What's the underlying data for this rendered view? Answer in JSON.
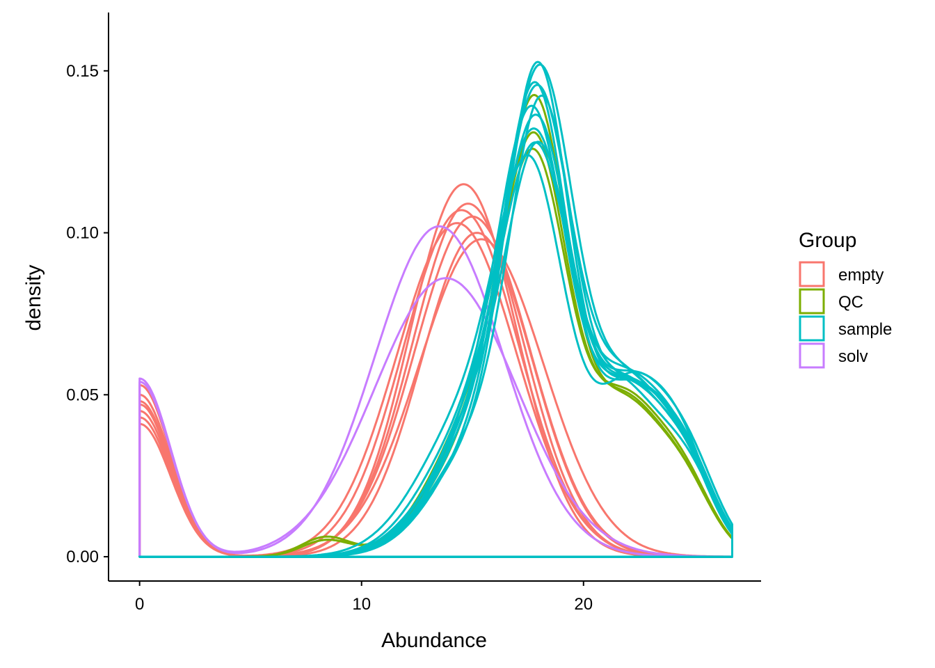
{
  "chart_data": {
    "type": "line",
    "subtype": "density",
    "xlabel": "Abundance",
    "ylabel": "density",
    "xlim": [
      -1.4,
      28.0
    ],
    "ylim": [
      -0.0075,
      0.168
    ],
    "x_ticks": [
      0,
      10,
      20
    ],
    "x_tick_labels": [
      "0",
      "10",
      "20"
    ],
    "y_ticks": [
      0.0,
      0.05,
      0.1,
      0.15
    ],
    "y_tick_labels": [
      "0.00",
      "0.05",
      "0.10",
      "0.15"
    ],
    "x_range": [
      0,
      26.7
    ],
    "grid": false,
    "legend": {
      "title": "Group",
      "placement": "right",
      "entries": [
        {
          "label": "empty",
          "color": "#F8766D"
        },
        {
          "label": "QC",
          "color": "#7CAE00"
        },
        {
          "label": "sample",
          "color": "#00BFC4"
        },
        {
          "label": "solv",
          "color": "#C77CFF"
        }
      ]
    },
    "series": [
      {
        "group": "empty",
        "color": "#F8766D",
        "zero_mass": 0.053,
        "components": [
          [
            14.6,
            2.4,
            0.115
          ]
        ]
      },
      {
        "group": "empty",
        "color": "#F8766D",
        "zero_mass": 0.05,
        "components": [
          [
            14.8,
            2.5,
            0.109
          ]
        ]
      },
      {
        "group": "empty",
        "color": "#F8766D",
        "zero_mass": 0.048,
        "components": [
          [
            14.5,
            2.6,
            0.107
          ]
        ]
      },
      {
        "group": "empty",
        "color": "#F8766D",
        "zero_mass": 0.047,
        "components": [
          [
            15.0,
            2.6,
            0.105
          ]
        ]
      },
      {
        "group": "empty",
        "color": "#F8766D",
        "zero_mass": 0.045,
        "components": [
          [
            14.3,
            2.7,
            0.103
          ]
        ]
      },
      {
        "group": "empty",
        "color": "#F8766D",
        "zero_mass": 0.043,
        "components": [
          [
            15.2,
            2.5,
            0.1
          ]
        ]
      },
      {
        "group": "empty",
        "color": "#F8766D",
        "zero_mass": 0.041,
        "components": [
          [
            15.4,
            2.8,
            0.098
          ]
        ]
      },
      {
        "group": "solv",
        "color": "#C77CFF",
        "zero_mass": 0.055,
        "components": [
          [
            13.5,
            2.9,
            0.102
          ]
        ]
      },
      {
        "group": "solv",
        "color": "#C77CFF",
        "zero_mass": 0.054,
        "components": [
          [
            13.8,
            3.2,
            0.086
          ]
        ]
      },
      {
        "group": "QC",
        "color": "#7CAE00",
        "zero_mass": 0,
        "components": [
          [
            17.9,
            1.45,
            0.118
          ],
          [
            15.5,
            2.2,
            0.038
          ],
          [
            21.8,
            1.7,
            0.045
          ],
          [
            24.6,
            1.3,
            0.018
          ],
          [
            8.4,
            1.1,
            0.006
          ]
        ]
      },
      {
        "group": "QC",
        "color": "#7CAE00",
        "zero_mass": 0,
        "components": [
          [
            17.9,
            1.45,
            0.104
          ],
          [
            15.5,
            2.2,
            0.042
          ],
          [
            21.8,
            1.7,
            0.046
          ],
          [
            24.6,
            1.3,
            0.018
          ],
          [
            8.4,
            1.1,
            0.005
          ]
        ]
      },
      {
        "group": "QC",
        "color": "#7CAE00",
        "zero_mass": 0,
        "components": [
          [
            17.9,
            1.45,
            0.097
          ],
          [
            15.5,
            2.2,
            0.045
          ],
          [
            21.8,
            1.7,
            0.047
          ],
          [
            24.6,
            1.3,
            0.019
          ],
          [
            8.4,
            1.1,
            0.005
          ]
        ]
      },
      {
        "group": "sample",
        "color": "#00BFC4",
        "zero_mass": 0,
        "components": [
          [
            18.0,
            1.4,
            0.132
          ],
          [
            15.4,
            2.2,
            0.033
          ],
          [
            22.0,
            1.8,
            0.05
          ],
          [
            24.7,
            1.3,
            0.02
          ]
        ]
      },
      {
        "group": "sample",
        "color": "#00BFC4",
        "zero_mass": 0,
        "components": [
          [
            18.1,
            1.5,
            0.128
          ],
          [
            15.6,
            2.2,
            0.035
          ],
          [
            21.9,
            1.8,
            0.051
          ],
          [
            24.7,
            1.3,
            0.021
          ]
        ]
      },
      {
        "group": "sample",
        "color": "#00BFC4",
        "zero_mass": 0,
        "components": [
          [
            17.9,
            1.45,
            0.124
          ],
          [
            15.3,
            2.3,
            0.036
          ],
          [
            22.1,
            1.8,
            0.05
          ],
          [
            24.8,
            1.3,
            0.02
          ]
        ]
      },
      {
        "group": "sample",
        "color": "#00BFC4",
        "zero_mass": 0,
        "components": [
          [
            18.0,
            1.5,
            0.12
          ],
          [
            15.5,
            2.2,
            0.038
          ],
          [
            21.8,
            1.8,
            0.052
          ],
          [
            24.6,
            1.3,
            0.021
          ]
        ]
      },
      {
        "group": "sample",
        "color": "#00BFC4",
        "zero_mass": 0,
        "components": [
          [
            18.2,
            1.4,
            0.117
          ],
          [
            15.7,
            2.3,
            0.038
          ],
          [
            22.0,
            1.7,
            0.05
          ],
          [
            24.8,
            1.3,
            0.021
          ]
        ]
      },
      {
        "group": "sample",
        "color": "#00BFC4",
        "zero_mass": 0,
        "components": [
          [
            17.8,
            1.5,
            0.113
          ],
          [
            15.4,
            2.2,
            0.04
          ],
          [
            21.9,
            1.8,
            0.05
          ],
          [
            24.7,
            1.3,
            0.02
          ]
        ]
      },
      {
        "group": "sample",
        "color": "#00BFC4",
        "zero_mass": 0,
        "components": [
          [
            18.0,
            1.5,
            0.109
          ],
          [
            15.6,
            2.2,
            0.042
          ],
          [
            22.1,
            1.8,
            0.051
          ],
          [
            24.6,
            1.3,
            0.021
          ]
        ]
      },
      {
        "group": "sample",
        "color": "#00BFC4",
        "zero_mass": 0,
        "components": [
          [
            17.9,
            1.55,
            0.105
          ],
          [
            15.3,
            2.3,
            0.042
          ],
          [
            21.8,
            1.8,
            0.049
          ],
          [
            24.8,
            1.3,
            0.02
          ]
        ]
      },
      {
        "group": "sample",
        "color": "#00BFC4",
        "zero_mass": 0,
        "components": [
          [
            18.1,
            1.45,
            0.101
          ],
          [
            15.5,
            2.2,
            0.044
          ],
          [
            22.0,
            1.8,
            0.05
          ],
          [
            24.7,
            1.3,
            0.02
          ]
        ]
      },
      {
        "group": "sample",
        "color": "#00BFC4",
        "zero_mass": 0,
        "components": [
          [
            18.0,
            1.5,
            0.097
          ],
          [
            15.6,
            2.2,
            0.046
          ],
          [
            21.9,
            1.8,
            0.052
          ],
          [
            24.6,
            1.3,
            0.021
          ]
        ]
      },
      {
        "group": "sample",
        "color": "#00BFC4",
        "zero_mass": 0,
        "components": [
          [
            17.7,
            1.5,
            0.094
          ],
          [
            15.2,
            2.4,
            0.046
          ],
          [
            22.2,
            1.8,
            0.053
          ],
          [
            24.9,
            1.3,
            0.02
          ]
        ]
      }
    ]
  }
}
